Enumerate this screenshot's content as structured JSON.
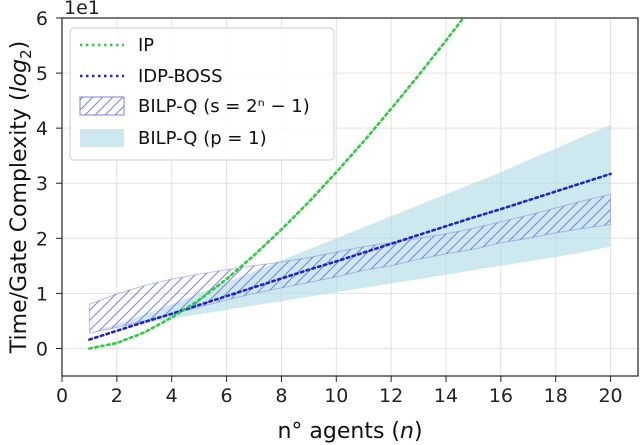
{
  "chart_data": {
    "type": "line",
    "xlabel": "n° agents (n)",
    "ylabel": "Time/Gate Complexity (log2)",
    "y_offset_text": "1e1",
    "xlim": [
      0,
      21
    ],
    "ylim": [
      -0.5,
      6
    ],
    "x_ticks": [
      0,
      2,
      4,
      6,
      8,
      10,
      12,
      14,
      16,
      18,
      20
    ],
    "y_ticks": [
      0,
      1,
      2,
      3,
      4,
      5,
      6
    ],
    "grid": true,
    "legend_position": "top-left",
    "series": [
      {
        "name": "IP",
        "style": "dotted-line",
        "color": "#2ecc40",
        "x": [
          1,
          2,
          3,
          4,
          5,
          6,
          7,
          8,
          9,
          10,
          11,
          12,
          13,
          14,
          15
        ],
        "y": [
          0.0,
          0.1,
          0.29,
          0.56,
          0.88,
          1.26,
          1.69,
          2.16,
          2.66,
          3.2,
          3.76,
          4.35,
          4.96,
          5.59,
          6.24
        ]
      },
      {
        "name": "IDP-BOSS",
        "style": "dotted-line",
        "color": "#2222cc",
        "x": [
          1,
          2,
          3,
          4,
          5,
          6,
          7,
          8,
          9,
          10,
          11,
          12,
          13,
          14,
          15,
          16,
          17,
          18,
          19,
          20
        ],
        "y": [
          0.16,
          0.32,
          0.48,
          0.63,
          0.79,
          0.95,
          1.11,
          1.27,
          1.43,
          1.58,
          1.74,
          1.9,
          2.06,
          2.22,
          2.38,
          2.53,
          2.69,
          2.85,
          3.01,
          3.17
        ]
      },
      {
        "name": "BILP-Q (s = 2ⁿ − 1)",
        "style": "hatched-band",
        "color": "#7b7bdd",
        "x": [
          1,
          2,
          3,
          4,
          5,
          6,
          7,
          8,
          9,
          10,
          11,
          12,
          13,
          14,
          15,
          16,
          17,
          18,
          19,
          20
        ],
        "upper": [
          0.8,
          0.99,
          1.14,
          1.26,
          1.35,
          1.43,
          1.5,
          1.57,
          1.65,
          1.75,
          1.85,
          1.92,
          2.0,
          2.08,
          2.18,
          2.3,
          2.42,
          2.55,
          2.68,
          2.8
        ],
        "lower": [
          0.28,
          0.38,
          0.5,
          0.62,
          0.75,
          0.88,
          1.0,
          1.1,
          1.2,
          1.3,
          1.42,
          1.5,
          1.62,
          1.72,
          1.8,
          1.92,
          2.0,
          2.1,
          2.18,
          2.25
        ]
      },
      {
        "name": "BILP-Q (p = 1)",
        "style": "filled-band",
        "color": "#add8e6",
        "x": [
          1,
          2,
          3,
          4,
          5,
          6,
          7,
          8,
          9,
          10,
          11,
          12,
          13,
          14,
          15,
          16,
          17,
          18,
          19,
          20
        ],
        "upper": [
          0.28,
          0.44,
          0.62,
          0.8,
          1.0,
          1.2,
          1.4,
          1.6,
          1.8,
          2.0,
          2.2,
          2.4,
          2.6,
          2.8,
          3.0,
          3.2,
          3.42,
          3.63,
          3.85,
          4.06
        ],
        "lower": [
          0.28,
          0.38,
          0.46,
          0.54,
          0.62,
          0.7,
          0.78,
          0.86,
          0.94,
          1.02,
          1.1,
          1.18,
          1.26,
          1.34,
          1.42,
          1.5,
          1.58,
          1.66,
          1.75,
          1.85
        ]
      }
    ]
  }
}
